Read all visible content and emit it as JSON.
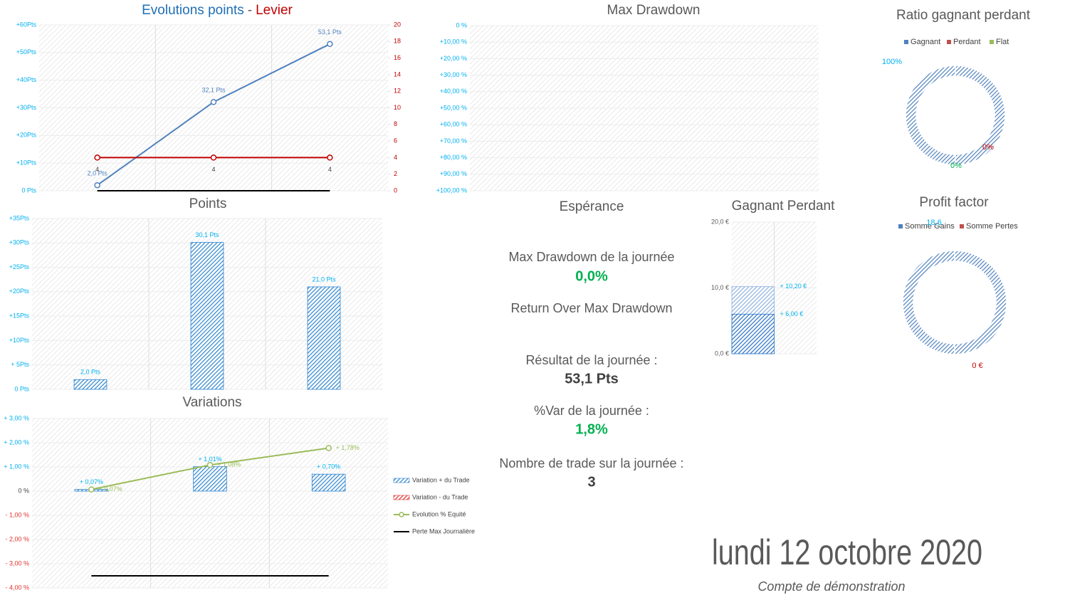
{
  "chart_data": [
    {
      "type": "line",
      "title_parts": [
        "Evolutions points",
        "-",
        "Levier"
      ],
      "categories": [
        null,
        null,
        null
      ],
      "series": [
        {
          "color": "#4f81bd",
          "values": [
            2.0,
            32.1,
            53.1
          ],
          "value_labels": [
            "2,0 Pts",
            "32,1 Pts",
            "53,1 Pts"
          ],
          "markers": true
        },
        {
          "color": "#c00000",
          "axis": "y2",
          "values": [
            4,
            4,
            4
          ],
          "markers": true
        },
        {
          "color": "#000000",
          "values": [
            0,
            0,
            0
          ],
          "markers": false
        }
      ],
      "ylim": [
        0,
        60
      ],
      "yticks": [
        {
          "value": 0,
          "label": "0 Pts"
        },
        {
          "value": 10,
          "label": "+10Pts"
        },
        {
          "value": 20,
          "label": "+20Pts"
        },
        {
          "value": 30,
          "label": "+30Pts"
        },
        {
          "value": 40,
          "label": "+40Pts"
        },
        {
          "value": 50,
          "label": "+50Pts"
        },
        {
          "value": 60,
          "label": "+60Pts"
        }
      ],
      "y2lim": [
        0,
        20
      ],
      "y2ticks": [
        0,
        2,
        4,
        6,
        8,
        10,
        12,
        14,
        16,
        18,
        20
      ],
      "grid": true
    },
    {
      "type": "line",
      "title": "Max Drawdown",
      "series": [],
      "ylim": [
        -100,
        0
      ],
      "yticks": [
        {
          "value": 0,
          "label": "0 %"
        },
        {
          "value": -10,
          "label": "+10,00 %"
        },
        {
          "value": -20,
          "label": "+20,00 %"
        },
        {
          "value": -30,
          "label": "+30,00 %"
        },
        {
          "value": -40,
          "label": "+40,00 %"
        },
        {
          "value": -50,
          "label": "+50,00 %"
        },
        {
          "value": -60,
          "label": "+60,00 %"
        },
        {
          "value": -70,
          "label": "+70,00 %"
        },
        {
          "value": -80,
          "label": "+80,00 %"
        },
        {
          "value": -90,
          "label": "+90,00 %"
        },
        {
          "value": -100,
          "label": "+100,00 %"
        }
      ],
      "grid": true
    },
    {
      "type": "bar",
      "title": "Points",
      "categories": [
        null,
        null,
        null
      ],
      "series": [
        {
          "color": "#2e86d0",
          "values": [
            2.0,
            30.1,
            21.0
          ],
          "value_labels": [
            "2,0 Pts",
            "30,1 Pts",
            "21,0 Pts"
          ]
        }
      ],
      "ylim": [
        0,
        35
      ],
      "yticks": [
        {
          "value": 0,
          "label": "0 Pts"
        },
        {
          "value": 5,
          "label": "+ 5Pts"
        },
        {
          "value": 10,
          "label": "+10Pts"
        },
        {
          "value": 15,
          "label": "+15Pts"
        },
        {
          "value": 20,
          "label": "+20Pts"
        },
        {
          "value": 25,
          "label": "+25Pts"
        },
        {
          "value": 30,
          "label": "+30Pts"
        },
        {
          "value": 35,
          "label": "+35Pts"
        }
      ],
      "grid": true
    },
    {
      "type": "combo",
      "title": "Variations",
      "categories": [
        null,
        null,
        null
      ],
      "series": [
        {
          "name": "Variation + du Trade",
          "type": "bar",
          "color": "#2e86d0",
          "values": [
            0.07,
            1.01,
            0.7
          ],
          "value_labels": [
            "+ 0,07%",
            "+ 1,01%",
            "+ 0,70%"
          ]
        },
        {
          "name": "Variation - du Trade",
          "type": "bar",
          "color": "#e0302a",
          "values": [
            null,
            null,
            null
          ]
        },
        {
          "name": "Evolution % Equité",
          "type": "line",
          "color": "#9bbb59",
          "values": [
            0.07,
            1.08,
            1.78
          ],
          "value_labels": [
            "+ 0,07%",
            "+ 1,08%",
            "+ 1,78%"
          ],
          "markers": true
        },
        {
          "name": "Perte Max Journalière",
          "type": "line",
          "color": "#000000",
          "values": [
            -3.5,
            -3.5,
            -3.5
          ],
          "markers": false
        }
      ],
      "ylim": [
        -4,
        3
      ],
      "yticks": [
        {
          "value": -4,
          "label": "- 4,00 %"
        },
        {
          "value": -3,
          "label": "- 3,00 %"
        },
        {
          "value": -2,
          "label": "- 2,00 %"
        },
        {
          "value": -1,
          "label": "- 1,00 %"
        },
        {
          "value": 0,
          "label": "0 %"
        },
        {
          "value": 1,
          "label": "+ 1,00 %"
        },
        {
          "value": 2,
          "label": "+ 2,00 %"
        },
        {
          "value": 3,
          "label": "+ 3,00 %"
        }
      ],
      "grid": true,
      "legend": "right"
    },
    {
      "type": "donut",
      "title": "Ratio gagnant perdant",
      "categories": [
        "Gagnant",
        "Perdant",
        "Flat"
      ],
      "values": [
        100,
        0,
        0
      ],
      "value_labels": [
        "100%",
        "0%",
        "0%"
      ],
      "colors": [
        "#4f81bd",
        "#c0504d",
        "#9bbb59"
      ],
      "legend": "top"
    },
    {
      "type": "bar",
      "title": "Gagnant Perdant",
      "categories": [
        null,
        null
      ],
      "series": [
        {
          "color": "#8db3e2",
          "values": [
            10.2,
            null
          ],
          "value_labels": [
            "+ 10,20 €",
            null
          ]
        },
        {
          "color": "#2e75c6",
          "values": [
            6.0,
            null
          ],
          "value_labels": [
            "+ 6,00 €",
            null
          ]
        }
      ],
      "ylim": [
        0,
        20
      ],
      "yticks": [
        {
          "value": 0,
          "label": "0,0 €"
        },
        {
          "value": 10,
          "label": "10,0 €"
        },
        {
          "value": 20,
          "label": "20,0 €"
        }
      ],
      "grid": true
    },
    {
      "type": "donut",
      "title": "Profit factor",
      "categories": [
        "Somme Gains",
        "Somme Pertes"
      ],
      "values": [
        18.6,
        0
      ],
      "value_labels": [
        "18,6",
        "0 €"
      ],
      "colors": [
        "#4f81bd",
        "#c0504d"
      ],
      "legend": "top"
    }
  ],
  "stats": {
    "title": "Espérance",
    "items": [
      {
        "label": "Max Drawdown de la journée",
        "value": "0,0%",
        "color": "#00b050"
      },
      {
        "label": "Return Over Max Drawdown"
      },
      {
        "label": "Résultat de la journée :",
        "value": "53,1 Pts",
        "color": "#404040"
      },
      {
        "label": "%Var de la journée :",
        "value": "1,8%",
        "color": "#00b050"
      },
      {
        "label": "Nombre de trade sur la journée :",
        "value": "3",
        "color": "#404040"
      }
    ]
  },
  "footer": {
    "date": "lundi 12 octobre 2020",
    "account": "Compte de démonstration"
  }
}
